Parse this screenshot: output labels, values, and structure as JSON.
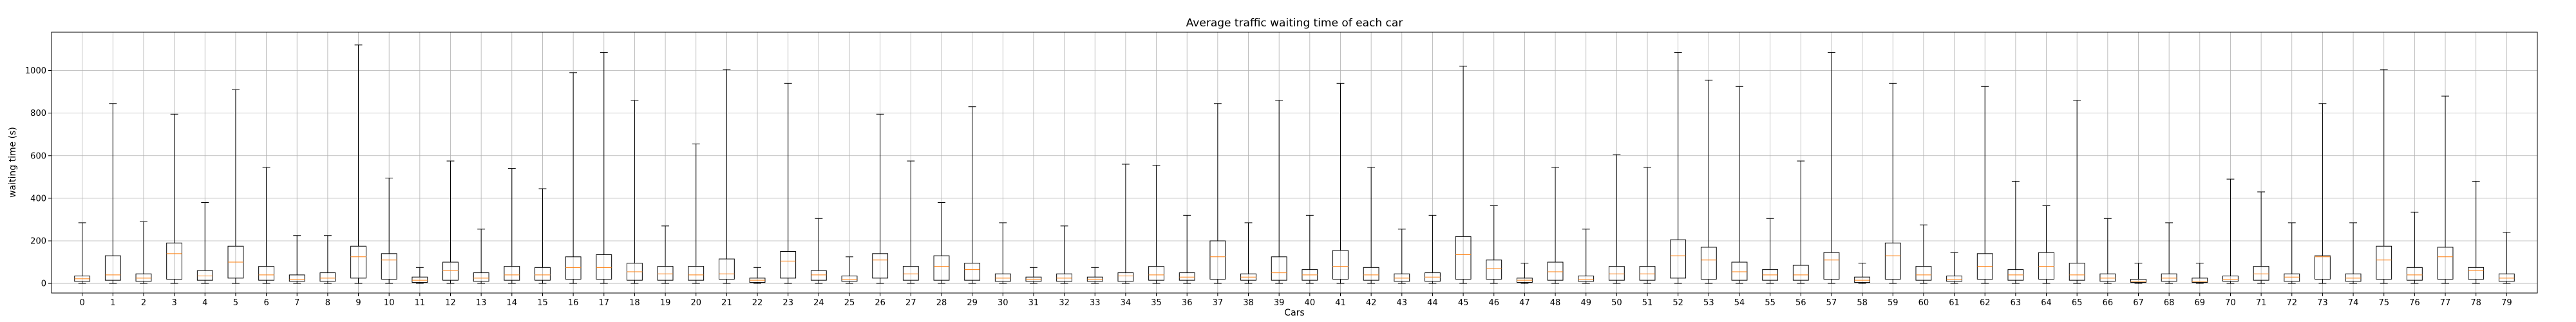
{
  "chart_data": {
    "type": "box",
    "title": "Average traffic waiting time of each car",
    "xlabel": "Cars",
    "ylabel": "waiting time (s)",
    "ylim": [
      -45,
      1180
    ],
    "y_ticks": [
      0,
      200,
      400,
      600,
      800,
      1000
    ],
    "grid": true,
    "colors": {
      "box": "#000000",
      "median": "#ff7f0e",
      "grid": "#b0b0b0"
    },
    "categories": [
      "0",
      "1",
      "2",
      "3",
      "4",
      "5",
      "6",
      "7",
      "8",
      "9",
      "10",
      "11",
      "12",
      "13",
      "14",
      "15",
      "16",
      "17",
      "18",
      "19",
      "20",
      "21",
      "22",
      "23",
      "24",
      "25",
      "26",
      "27",
      "28",
      "29",
      "30",
      "31",
      "32",
      "33",
      "34",
      "35",
      "36",
      "37",
      "38",
      "39",
      "40",
      "41",
      "42",
      "43",
      "44",
      "45",
      "46",
      "47",
      "48",
      "49",
      "50",
      "51",
      "52",
      "53",
      "54",
      "55",
      "56",
      "57",
      "58",
      "59",
      "60",
      "61",
      "62",
      "63",
      "64",
      "65",
      "66",
      "67",
      "68",
      "69",
      "70",
      "71",
      "72",
      "73",
      "74",
      "75",
      "76",
      "77",
      "78",
      "79"
    ],
    "boxes": [
      {
        "whislo": 0,
        "q1": 10,
        "med": 22,
        "q3": 35,
        "whishi": 285
      },
      {
        "whislo": 0,
        "q1": 15,
        "med": 40,
        "q3": 130,
        "whishi": 845
      },
      {
        "whislo": 0,
        "q1": 10,
        "med": 25,
        "q3": 45,
        "whishi": 290
      },
      {
        "whislo": 0,
        "q1": 20,
        "med": 140,
        "q3": 190,
        "whishi": 795
      },
      {
        "whislo": 0,
        "q1": 15,
        "med": 35,
        "q3": 60,
        "whishi": 380
      },
      {
        "whislo": 0,
        "q1": 25,
        "med": 100,
        "q3": 175,
        "whishi": 910
      },
      {
        "whislo": 0,
        "q1": 15,
        "med": 40,
        "q3": 80,
        "whishi": 545
      },
      {
        "whislo": 0,
        "q1": 10,
        "med": 20,
        "q3": 40,
        "whishi": 225
      },
      {
        "whislo": 0,
        "q1": 10,
        "med": 25,
        "q3": 50,
        "whishi": 225
      },
      {
        "whislo": 0,
        "q1": 25,
        "med": 125,
        "q3": 175,
        "whishi": 1120
      },
      {
        "whislo": 0,
        "q1": 20,
        "med": 110,
        "q3": 140,
        "whishi": 495
      },
      {
        "whislo": 0,
        "q1": 5,
        "med": 15,
        "q3": 30,
        "whishi": 75
      },
      {
        "whislo": 0,
        "q1": 15,
        "med": 60,
        "q3": 100,
        "whishi": 575
      },
      {
        "whislo": 0,
        "q1": 10,
        "med": 25,
        "q3": 50,
        "whishi": 255
      },
      {
        "whislo": 0,
        "q1": 15,
        "med": 40,
        "q3": 80,
        "whishi": 540
      },
      {
        "whislo": 0,
        "q1": 15,
        "med": 40,
        "q3": 75,
        "whishi": 445
      },
      {
        "whislo": 0,
        "q1": 20,
        "med": 75,
        "q3": 125,
        "whishi": 990
      },
      {
        "whislo": 0,
        "q1": 20,
        "med": 75,
        "q3": 135,
        "whishi": 1085
      },
      {
        "whislo": 0,
        "q1": 15,
        "med": 55,
        "q3": 95,
        "whishi": 860
      },
      {
        "whislo": 0,
        "q1": 15,
        "med": 45,
        "q3": 80,
        "whishi": 270
      },
      {
        "whislo": 0,
        "q1": 15,
        "med": 40,
        "q3": 80,
        "whishi": 655
      },
      {
        "whislo": 0,
        "q1": 20,
        "med": 45,
        "q3": 115,
        "whishi": 1005
      },
      {
        "whislo": 0,
        "q1": 5,
        "med": 15,
        "q3": 25,
        "whishi": 75
      },
      {
        "whislo": 0,
        "q1": 25,
        "med": 105,
        "q3": 150,
        "whishi": 940
      },
      {
        "whislo": 0,
        "q1": 15,
        "med": 40,
        "q3": 60,
        "whishi": 305
      },
      {
        "whislo": 0,
        "q1": 10,
        "med": 20,
        "q3": 35,
        "whishi": 125
      },
      {
        "whislo": 0,
        "q1": 25,
        "med": 110,
        "q3": 140,
        "whishi": 795
      },
      {
        "whislo": 0,
        "q1": 15,
        "med": 45,
        "q3": 80,
        "whishi": 575
      },
      {
        "whislo": 0,
        "q1": 15,
        "med": 80,
        "q3": 130,
        "whishi": 380
      },
      {
        "whislo": 0,
        "q1": 15,
        "med": 65,
        "q3": 95,
        "whishi": 830
      },
      {
        "whislo": 0,
        "q1": 10,
        "med": 25,
        "q3": 45,
        "whishi": 285
      },
      {
        "whislo": 0,
        "q1": 10,
        "med": 20,
        "q3": 30,
        "whishi": 75
      },
      {
        "whislo": 0,
        "q1": 10,
        "med": 25,
        "q3": 45,
        "whishi": 270
      },
      {
        "whislo": 0,
        "q1": 10,
        "med": 20,
        "q3": 30,
        "whishi": 75
      },
      {
        "whislo": 0,
        "q1": 10,
        "med": 35,
        "q3": 50,
        "whishi": 560
      },
      {
        "whislo": 0,
        "q1": 15,
        "med": 40,
        "q3": 80,
        "whishi": 555
      },
      {
        "whislo": 0,
        "q1": 15,
        "med": 30,
        "q3": 50,
        "whishi": 320
      },
      {
        "whislo": 0,
        "q1": 20,
        "med": 125,
        "q3": 200,
        "whishi": 845
      },
      {
        "whislo": 0,
        "q1": 15,
        "med": 30,
        "q3": 45,
        "whishi": 285
      },
      {
        "whislo": 0,
        "q1": 15,
        "med": 50,
        "q3": 125,
        "whishi": 860
      },
      {
        "whislo": 0,
        "q1": 15,
        "med": 40,
        "q3": 65,
        "whishi": 320
      },
      {
        "whislo": 0,
        "q1": 20,
        "med": 80,
        "q3": 155,
        "whishi": 940
      },
      {
        "whislo": 0,
        "q1": 15,
        "med": 40,
        "q3": 75,
        "whishi": 545
      },
      {
        "whislo": 0,
        "q1": 10,
        "med": 25,
        "q3": 45,
        "whishi": 255
      },
      {
        "whislo": 0,
        "q1": 10,
        "med": 30,
        "q3": 50,
        "whishi": 320
      },
      {
        "whislo": 0,
        "q1": 20,
        "med": 135,
        "q3": 220,
        "whishi": 1020
      },
      {
        "whislo": 0,
        "q1": 20,
        "med": 70,
        "q3": 110,
        "whishi": 365
      },
      {
        "whislo": 0,
        "q1": 5,
        "med": 15,
        "q3": 25,
        "whishi": 95
      },
      {
        "whislo": 0,
        "q1": 15,
        "med": 55,
        "q3": 100,
        "whishi": 545
      },
      {
        "whislo": 0,
        "q1": 10,
        "med": 20,
        "q3": 35,
        "whishi": 255
      },
      {
        "whislo": 0,
        "q1": 15,
        "med": 45,
        "q3": 80,
        "whishi": 605
      },
      {
        "whislo": 0,
        "q1": 15,
        "med": 45,
        "q3": 80,
        "whishi": 545
      },
      {
        "whislo": 0,
        "q1": 25,
        "med": 130,
        "q3": 205,
        "whishi": 1085
      },
      {
        "whislo": 0,
        "q1": 20,
        "med": 110,
        "q3": 170,
        "whishi": 955
      },
      {
        "whislo": 0,
        "q1": 15,
        "med": 55,
        "q3": 100,
        "whishi": 925
      },
      {
        "whislo": 0,
        "q1": 15,
        "med": 40,
        "q3": 65,
        "whishi": 305
      },
      {
        "whislo": 0,
        "q1": 15,
        "med": 40,
        "q3": 85,
        "whishi": 575
      },
      {
        "whislo": 0,
        "q1": 20,
        "med": 110,
        "q3": 145,
        "whishi": 1085
      },
      {
        "whislo": 0,
        "q1": 5,
        "med": 15,
        "q3": 30,
        "whishi": 95
      },
      {
        "whislo": 0,
        "q1": 20,
        "med": 130,
        "q3": 190,
        "whishi": 940
      },
      {
        "whislo": 0,
        "q1": 15,
        "med": 40,
        "q3": 80,
        "whishi": 275
      },
      {
        "whislo": 0,
        "q1": 10,
        "med": 20,
        "q3": 35,
        "whishi": 145
      },
      {
        "whislo": 0,
        "q1": 20,
        "med": 80,
        "q3": 140,
        "whishi": 925
      },
      {
        "whislo": 0,
        "q1": 15,
        "med": 40,
        "q3": 65,
        "whishi": 480
      },
      {
        "whislo": 0,
        "q1": 20,
        "med": 80,
        "q3": 145,
        "whishi": 365
      },
      {
        "whislo": 0,
        "q1": 15,
        "med": 40,
        "q3": 95,
        "whishi": 860
      },
      {
        "whislo": 0,
        "q1": 10,
        "med": 25,
        "q3": 45,
        "whishi": 305
      },
      {
        "whislo": 0,
        "q1": 5,
        "med": 10,
        "q3": 20,
        "whishi": 95
      },
      {
        "whislo": 0,
        "q1": 10,
        "med": 25,
        "q3": 45,
        "whishi": 285
      },
      {
        "whislo": 0,
        "q1": 5,
        "med": 10,
        "q3": 25,
        "whishi": 95
      },
      {
        "whislo": 0,
        "q1": 10,
        "med": 20,
        "q3": 35,
        "whishi": 490
      },
      {
        "whislo": 0,
        "q1": 15,
        "med": 45,
        "q3": 80,
        "whishi": 430
      },
      {
        "whislo": 0,
        "q1": 10,
        "med": 30,
        "q3": 45,
        "whishi": 285
      },
      {
        "whislo": 0,
        "q1": 20,
        "med": 125,
        "q3": 130,
        "whishi": 845
      },
      {
        "whislo": 0,
        "q1": 10,
        "med": 25,
        "q3": 45,
        "whishi": 285
      },
      {
        "whislo": 0,
        "q1": 20,
        "med": 110,
        "q3": 175,
        "whishi": 1005
      },
      {
        "whislo": 0,
        "q1": 15,
        "med": 40,
        "q3": 75,
        "whishi": 335
      },
      {
        "whislo": 0,
        "q1": 20,
        "med": 125,
        "q3": 170,
        "whishi": 880
      },
      {
        "whislo": 0,
        "q1": 20,
        "med": 60,
        "q3": 75,
        "whishi": 480
      },
      {
        "whislo": 0,
        "q1": 10,
        "med": 25,
        "q3": 45,
        "whishi": 240
      }
    ]
  }
}
